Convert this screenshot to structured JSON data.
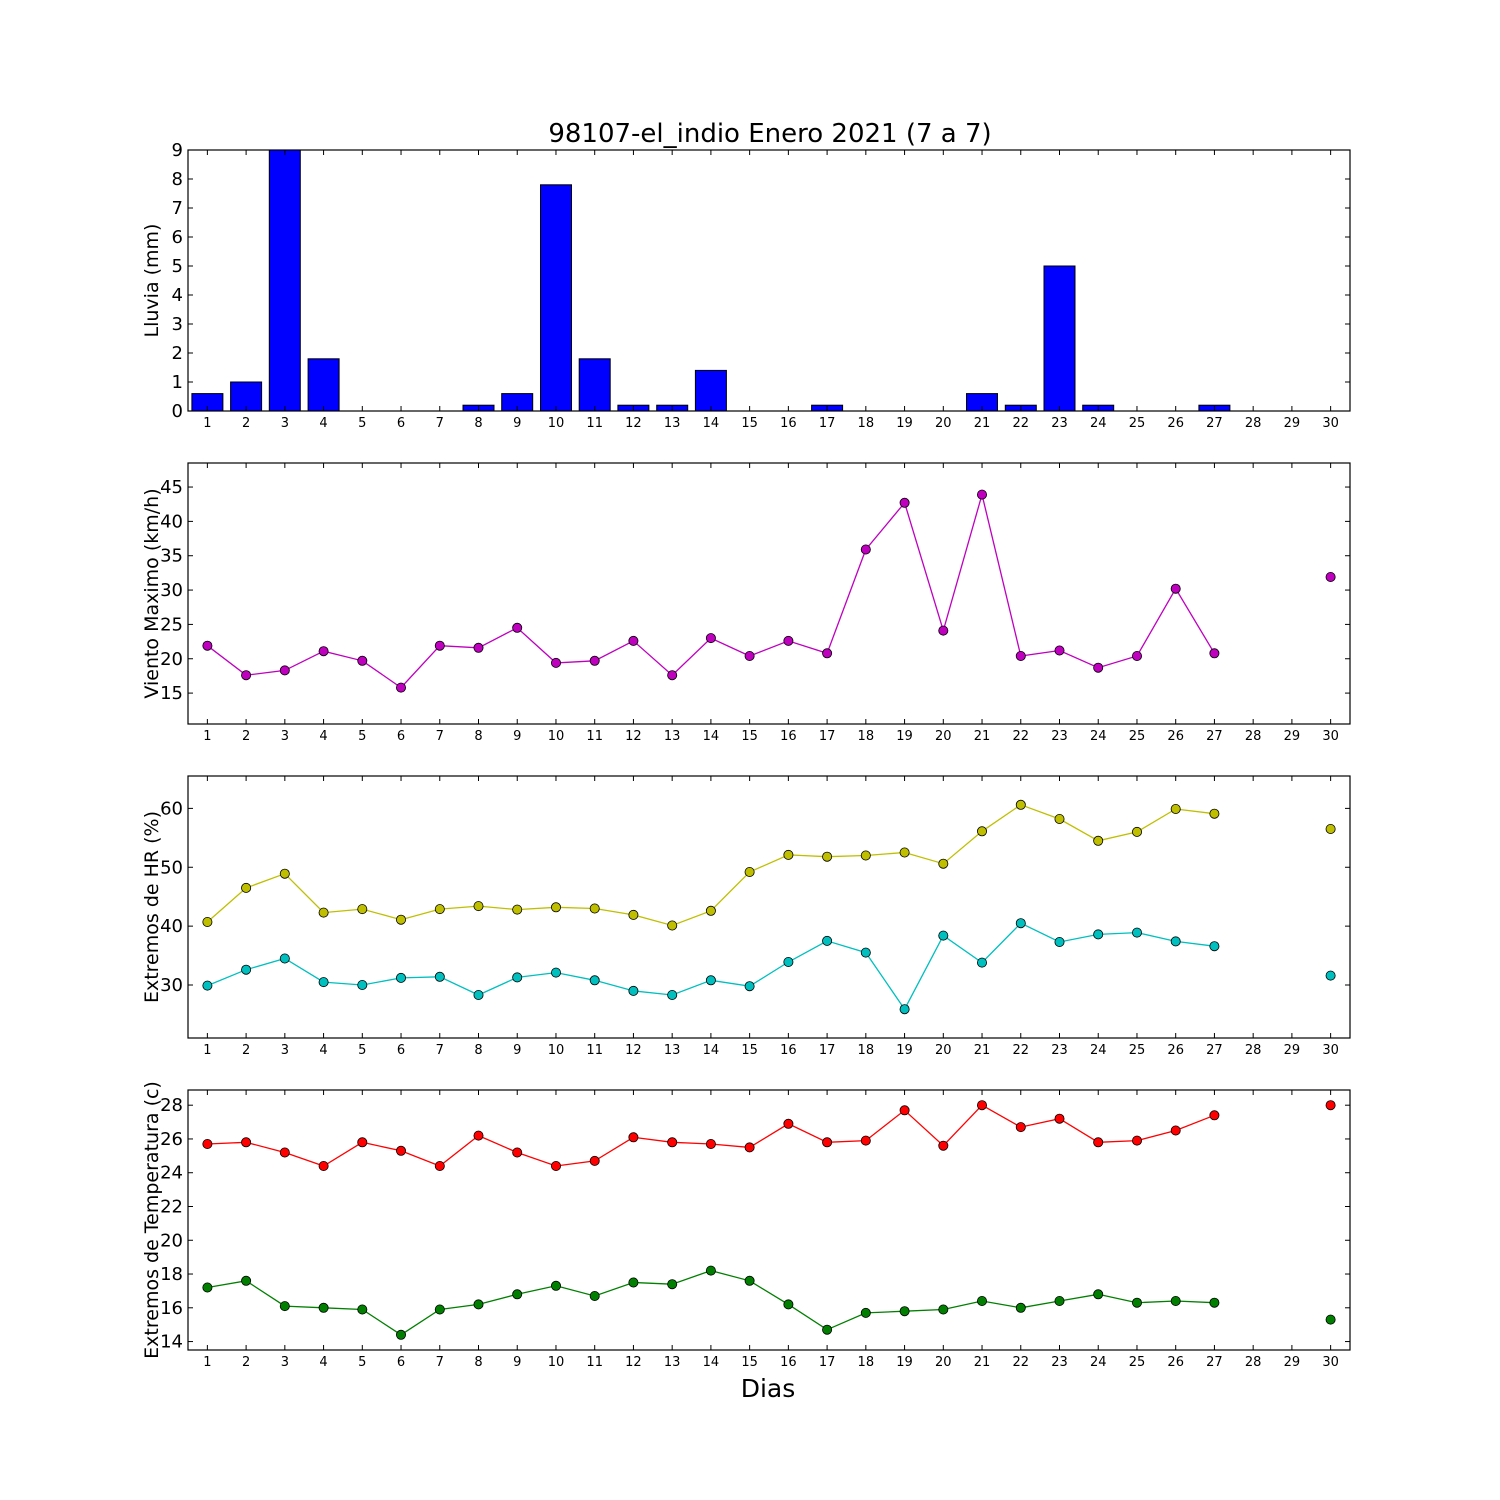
{
  "title": "98107-el_indio Enero 2021  (7 a 7)",
  "xlabel": "Dias",
  "chart_data": [
    {
      "type": "bar",
      "ylabel": "Lluvia (mm)",
      "xlim": [
        0.5,
        30.5
      ],
      "ylim": [
        0,
        9
      ],
      "yticks": [
        0,
        1,
        2,
        3,
        4,
        5,
        6,
        7,
        8,
        9
      ],
      "xticks": [
        1,
        2,
        3,
        4,
        5,
        6,
        7,
        8,
        9,
        10,
        11,
        12,
        13,
        14,
        15,
        16,
        17,
        18,
        19,
        20,
        21,
        22,
        23,
        24,
        25,
        26,
        27,
        28,
        29,
        30
      ],
      "color": "#0000ff",
      "series": [
        {
          "x": [
            1,
            2,
            3,
            4,
            5,
            6,
            7,
            8,
            9,
            10,
            11,
            12,
            13,
            14,
            15,
            16,
            17,
            18,
            19,
            20,
            21,
            22,
            23,
            24,
            25,
            26,
            27
          ],
          "values": [
            0.6,
            1.0,
            9.0,
            1.8,
            0,
            0,
            0,
            0.2,
            0.6,
            7.8,
            1.8,
            0.2,
            0.2,
            1.4,
            0,
            0,
            0.2,
            0,
            0,
            0,
            0.6,
            0.2,
            5.0,
            0.2,
            0,
            0,
            0.2
          ]
        }
      ]
    },
    {
      "type": "line",
      "ylabel": "Viento Maximo (km/h)",
      "xlim": [
        0.5,
        30.5
      ],
      "ylim": [
        10.5,
        48.5
      ],
      "yticks": [
        15,
        20,
        25,
        30,
        35,
        40,
        45
      ],
      "xticks": [
        1,
        2,
        3,
        4,
        5,
        6,
        7,
        8,
        9,
        10,
        11,
        12,
        13,
        14,
        15,
        16,
        17,
        18,
        19,
        20,
        21,
        22,
        23,
        24,
        25,
        26,
        27,
        28,
        29,
        30
      ],
      "series": [
        {
          "color": "#bf00bf",
          "x": [
            1,
            2,
            3,
            4,
            5,
            6,
            7,
            8,
            9,
            10,
            11,
            12,
            13,
            14,
            15,
            16,
            17,
            18,
            19,
            20,
            21,
            22,
            23,
            24,
            25,
            26,
            27,
            30
          ],
          "values": [
            21.9,
            17.6,
            18.3,
            21.1,
            19.7,
            15.8,
            21.9,
            21.6,
            24.5,
            19.4,
            19.7,
            22.6,
            17.6,
            23.0,
            20.4,
            22.6,
            20.8,
            35.9,
            42.7,
            24.1,
            43.9,
            20.4,
            21.2,
            18.7,
            20.4,
            30.2,
            20.8,
            31.9
          ],
          "break_after_x": 27
        }
      ]
    },
    {
      "type": "line",
      "ylabel": "Extremos de HR (%)",
      "xlim": [
        0.5,
        30.5
      ],
      "ylim": [
        21,
        65.5
      ],
      "yticks": [
        30,
        40,
        50,
        60
      ],
      "xticks": [
        1,
        2,
        3,
        4,
        5,
        6,
        7,
        8,
        9,
        10,
        11,
        12,
        13,
        14,
        15,
        16,
        17,
        18,
        19,
        20,
        21,
        22,
        23,
        24,
        25,
        26,
        27,
        28,
        29,
        30
      ],
      "series": [
        {
          "color": "#bfbf00",
          "x": [
            1,
            2,
            3,
            4,
            5,
            6,
            7,
            8,
            9,
            10,
            11,
            12,
            13,
            14,
            15,
            16,
            17,
            18,
            19,
            20,
            21,
            22,
            23,
            24,
            25,
            26,
            27,
            30
          ],
          "values": [
            40.7,
            46.5,
            48.9,
            42.3,
            42.9,
            41.1,
            42.9,
            43.4,
            42.8,
            43.2,
            43.0,
            41.9,
            40.1,
            42.6,
            49.2,
            52.1,
            51.8,
            52.0,
            52.5,
            50.6,
            56.1,
            60.6,
            58.2,
            54.5,
            56.0,
            59.9,
            59.1,
            56.5
          ],
          "break_after_x": 27
        },
        {
          "color": "#00bfbf",
          "x": [
            1,
            2,
            3,
            4,
            5,
            6,
            7,
            8,
            9,
            10,
            11,
            12,
            13,
            14,
            15,
            16,
            17,
            18,
            19,
            20,
            21,
            22,
            23,
            24,
            25,
            26,
            27,
            30
          ],
          "values": [
            29.9,
            32.6,
            34.5,
            30.5,
            30.0,
            31.2,
            31.4,
            28.3,
            31.3,
            32.1,
            30.8,
            29.0,
            28.3,
            30.8,
            29.8,
            33.9,
            37.5,
            35.5,
            25.9,
            38.4,
            33.8,
            40.5,
            37.3,
            38.6,
            38.9,
            37.4,
            36.6,
            31.6
          ],
          "break_after_x": 27
        }
      ]
    },
    {
      "type": "line",
      "ylabel": "Extremos de Temperatura (c)",
      "xlim": [
        0.5,
        30.5
      ],
      "ylim": [
        13.5,
        28.9
      ],
      "yticks": [
        14,
        16,
        18,
        20,
        22,
        24,
        26,
        28
      ],
      "xticks": [
        1,
        2,
        3,
        4,
        5,
        6,
        7,
        8,
        9,
        10,
        11,
        12,
        13,
        14,
        15,
        16,
        17,
        18,
        19,
        20,
        21,
        22,
        23,
        24,
        25,
        26,
        27,
        28,
        29,
        30
      ],
      "series": [
        {
          "color": "#ff0000",
          "x": [
            1,
            2,
            3,
            4,
            5,
            6,
            7,
            8,
            9,
            10,
            11,
            12,
            13,
            14,
            15,
            16,
            17,
            18,
            19,
            20,
            21,
            22,
            23,
            24,
            25,
            26,
            27,
            30
          ],
          "values": [
            25.7,
            25.8,
            25.2,
            24.4,
            25.8,
            25.3,
            24.4,
            26.2,
            25.2,
            24.4,
            24.7,
            26.1,
            25.8,
            25.7,
            25.5,
            26.9,
            25.8,
            25.9,
            27.7,
            25.6,
            28.0,
            26.7,
            27.2,
            25.8,
            25.9,
            26.5,
            27.4,
            28.0
          ],
          "break_after_x": 27
        },
        {
          "color": "#007f00",
          "x": [
            1,
            2,
            3,
            4,
            5,
            6,
            7,
            8,
            9,
            10,
            11,
            12,
            13,
            14,
            15,
            16,
            17,
            18,
            19,
            20,
            21,
            22,
            23,
            24,
            25,
            26,
            27,
            30
          ],
          "values": [
            17.2,
            17.6,
            16.1,
            16.0,
            15.9,
            14.4,
            15.9,
            16.2,
            16.8,
            17.3,
            16.7,
            17.5,
            17.4,
            18.2,
            17.6,
            16.2,
            14.7,
            15.7,
            15.8,
            15.9,
            16.4,
            16.0,
            16.4,
            16.8,
            16.3,
            16.4,
            16.3,
            15.3
          ],
          "break_after_x": 27
        }
      ]
    }
  ]
}
